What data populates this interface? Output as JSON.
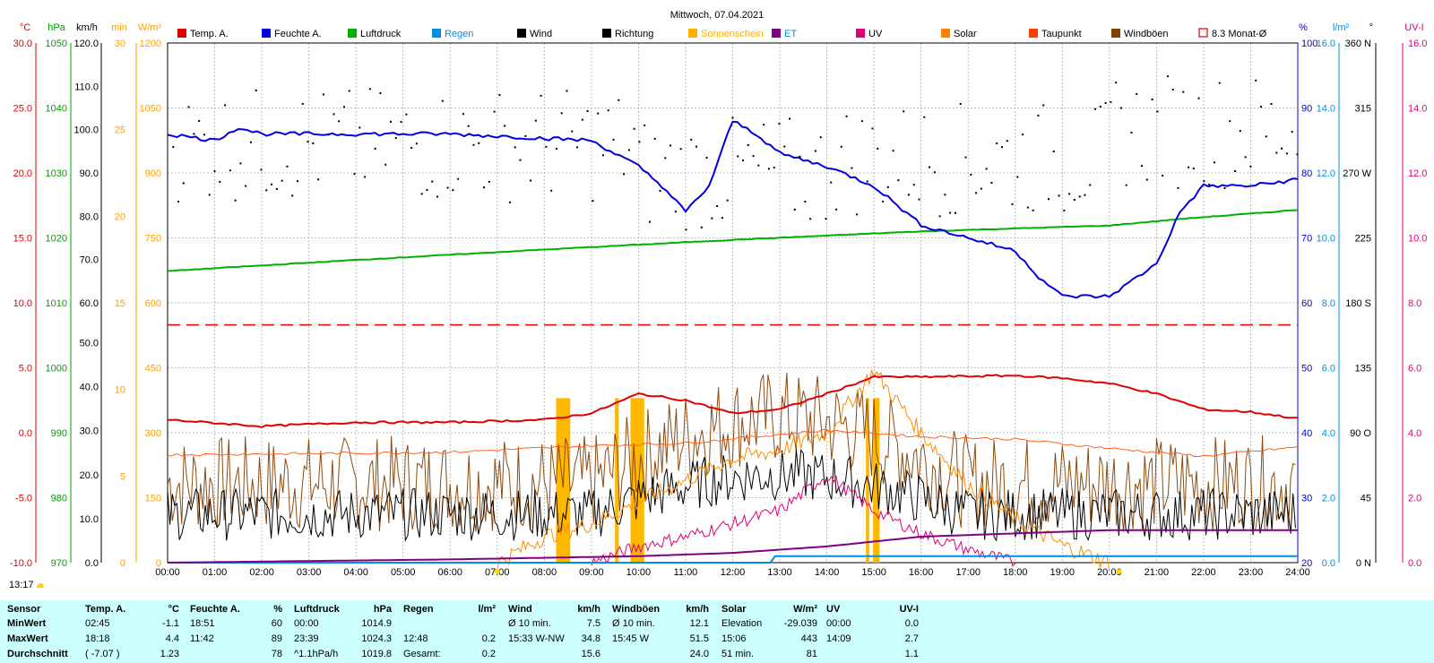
{
  "title": "Mittwoch, 07.04.2021",
  "sun_time": "13:17",
  "legend": [
    {
      "label": "Temp. A.",
      "color": "#e00000"
    },
    {
      "label": "Feuchte A.",
      "color": "#0000e0"
    },
    {
      "label": "Luftdruck",
      "color": "#00b000"
    },
    {
      "label": "Regen",
      "color": "#0090e0"
    },
    {
      "label": "Wind",
      "color": "#000000"
    },
    {
      "label": "Richtung",
      "color": "#000000"
    },
    {
      "label": "Sonnenschein",
      "color": "#ffb000"
    },
    {
      "label": "ET",
      "color": "#800080"
    },
    {
      "label": "UV",
      "color": "#e0007a"
    },
    {
      "label": "Solar",
      "color": "#ff8000"
    },
    {
      "label": "Taupunkt",
      "color": "#ff4000"
    },
    {
      "label": "Windböen",
      "color": "#804000"
    },
    {
      "label": "8.3 Monat-Ø",
      "color": "#e00000"
    }
  ],
  "axis_units": {
    "temp": "°C",
    "press": "hPa",
    "wind": "km/h",
    "sun": "min",
    "solar": "W/m²",
    "hum": "%",
    "rain": "l/m²",
    "dir": "°",
    "uv": "UV-I"
  },
  "axis_ticks": {
    "temp": [
      "30.0",
      "25.0",
      "20.0",
      "15.0",
      "10.0",
      "5.0",
      "0.0",
      "-5.0",
      "-10.0"
    ],
    "press": [
      "1050",
      "1040",
      "1030",
      "1020",
      "1010",
      "1000",
      "990",
      "980",
      "970"
    ],
    "wind": [
      "120.0",
      "110.0",
      "100.0",
      "90.0",
      "80.0",
      "70.0",
      "60.0",
      "50.0",
      "40.0",
      "30.0",
      "20.0",
      "10.0",
      "0.0"
    ],
    "sun": [
      "30",
      "25",
      "20",
      "15",
      "10",
      "5",
      "0"
    ],
    "solar": [
      "1200",
      "1050",
      "900",
      "750",
      "600",
      "450",
      "300",
      "150",
      "0"
    ],
    "hum": [
      "100",
      "90",
      "80",
      "70",
      "60",
      "50",
      "40",
      "30",
      "20"
    ],
    "rain": [
      "16.0",
      "14.0",
      "12.0",
      "10.0",
      "8.0",
      "6.0",
      "4.0",
      "2.0",
      "0.0"
    ],
    "dir": [
      "360 N",
      "315",
      "270 W",
      "225",
      "180 S",
      "135",
      "90 O",
      "45",
      "0 N"
    ],
    "uv": [
      "16.0",
      "14.0",
      "12.0",
      "10.0",
      "8.0",
      "6.0",
      "4.0",
      "2.0",
      "0.0"
    ],
    "time": [
      "00:00",
      "01:00",
      "02:00",
      "03:00",
      "04:00",
      "05:00",
      "06:00",
      "07:00",
      "08:00",
      "09:00",
      "10:00",
      "11:00",
      "12:00",
      "13:00",
      "14:00",
      "15:00",
      "16:00",
      "17:00",
      "18:00",
      "19:00",
      "20:00",
      "21:00",
      "22:00",
      "23:00",
      "24:00"
    ]
  },
  "chart_data": {
    "type": "line",
    "title": "Mittwoch, 07.04.2021",
    "x_range_hours": [
      0,
      24
    ],
    "monthly_avg_temp": 8.3,
    "series": [
      {
        "name": "Temp. A.",
        "unit": "°C",
        "points": [
          [
            0,
            1.0
          ],
          [
            2,
            0.5
          ],
          [
            4,
            0.8
          ],
          [
            6,
            0.8
          ],
          [
            8,
            1.0
          ],
          [
            9,
            1.5
          ],
          [
            10,
            3.0
          ],
          [
            11,
            2.5
          ],
          [
            12,
            1.5
          ],
          [
            13,
            1.8
          ],
          [
            14,
            3.0
          ],
          [
            15,
            4.3
          ],
          [
            16,
            4.3
          ],
          [
            18,
            4.4
          ],
          [
            19,
            4.2
          ],
          [
            20,
            3.8
          ],
          [
            21,
            3.0
          ],
          [
            22,
            1.8
          ],
          [
            23,
            1.6
          ],
          [
            24,
            1.1
          ]
        ]
      },
      {
        "name": "Feuchte A.",
        "unit": "%",
        "points": [
          [
            0,
            86
          ],
          [
            1,
            85
          ],
          [
            1.5,
            87
          ],
          [
            2,
            86
          ],
          [
            3,
            86
          ],
          [
            4,
            86
          ],
          [
            6,
            86
          ],
          [
            9,
            85
          ],
          [
            10,
            81
          ],
          [
            10.5,
            78
          ],
          [
            11,
            74
          ],
          [
            11.5,
            78
          ],
          [
            12,
            88
          ],
          [
            12.5,
            86
          ],
          [
            13,
            83
          ],
          [
            14,
            81
          ],
          [
            15,
            78
          ],
          [
            15.5,
            75
          ],
          [
            16,
            72
          ],
          [
            17,
            70
          ],
          [
            18,
            68
          ],
          [
            18.5,
            64
          ],
          [
            19,
            61
          ],
          [
            20,
            61
          ],
          [
            21,
            66
          ],
          [
            21.5,
            74
          ],
          [
            22,
            78
          ],
          [
            23,
            78
          ],
          [
            24,
            79
          ]
        ]
      },
      {
        "name": "Luftdruck",
        "unit": "hPa",
        "points": [
          [
            0,
            1014.9
          ],
          [
            4,
            1016.6
          ],
          [
            8,
            1018.2
          ],
          [
            12,
            1019.7
          ],
          [
            16,
            1021.0
          ],
          [
            20,
            1021.9
          ],
          [
            21.5,
            1022.9
          ],
          [
            24,
            1024.3
          ]
        ]
      },
      {
        "name": "Regen",
        "unit": "l/m²",
        "points": [
          [
            0,
            0
          ],
          [
            12.8,
            0
          ],
          [
            12.8,
            0.2
          ],
          [
            24,
            0.2
          ]
        ]
      },
      {
        "name": "ET",
        "unit": "l/m²",
        "points": [
          [
            0,
            0
          ],
          [
            6,
            0.1
          ],
          [
            10,
            0.2
          ],
          [
            12,
            0.3
          ],
          [
            14,
            0.5
          ],
          [
            16,
            0.8
          ],
          [
            18,
            0.9
          ],
          [
            20,
            1.0
          ],
          [
            22,
            1.0
          ],
          [
            24,
            1.0
          ]
        ]
      },
      {
        "name": "Sonnenschein",
        "unit": "min",
        "points": [
          [
            8.25,
            9.5
          ],
          [
            9.5,
            9.5
          ],
          [
            10.0,
            9.5
          ],
          [
            14.9,
            9.5
          ],
          [
            15.1,
            9.5
          ]
        ]
      },
      {
        "name": "Solar",
        "unit": "W/m²",
        "points": [
          [
            7,
            0
          ],
          [
            8,
            60
          ],
          [
            9,
            90
          ],
          [
            10,
            140
          ],
          [
            11,
            190
          ],
          [
            12,
            240
          ],
          [
            13,
            260
          ],
          [
            14,
            300
          ],
          [
            15,
            443
          ],
          [
            16,
            300
          ],
          [
            17,
            180
          ],
          [
            18,
            100
          ],
          [
            19,
            40
          ],
          [
            20,
            0
          ]
        ]
      },
      {
        "name": "UV",
        "unit": "UV-I",
        "points": [
          [
            9,
            0
          ],
          [
            10,
            0.5
          ],
          [
            11,
            0.8
          ],
          [
            12,
            1.2
          ],
          [
            13,
            1.6
          ],
          [
            14,
            2.7
          ],
          [
            15,
            1.6
          ],
          [
            16,
            0.9
          ],
          [
            17,
            0.4
          ],
          [
            18,
            0
          ]
        ]
      },
      {
        "name": "Taupunkt",
        "unit": "°C",
        "points": [
          [
            0,
            -1.7
          ],
          [
            6,
            -1.5
          ],
          [
            9,
            -1.0
          ],
          [
            11,
            -0.8
          ],
          [
            14,
            0.2
          ],
          [
            16,
            -0.3
          ],
          [
            18,
            -0.5
          ],
          [
            20,
            -1.2
          ],
          [
            22,
            -1.8
          ],
          [
            24,
            -1.1
          ]
        ]
      },
      {
        "name": "Wind",
        "unit": "km/h",
        "mean": 15.6,
        "max": 34.8
      },
      {
        "name": "Windböen",
        "unit": "km/h",
        "mean": 24.0,
        "max": 51.5
      },
      {
        "name": "Richtung",
        "unit": "°"
      }
    ]
  },
  "stats": {
    "row_labels": [
      "Sensor",
      "MinWert",
      "MaxWert",
      "Durchschnitt"
    ],
    "columns": [
      {
        "head": "Temp. A.",
        "unit": "°C",
        "rows": [
          [
            "02:45",
            "-1.1"
          ],
          [
            "18:18",
            "4.4"
          ],
          [
            "( -7.07 )",
            "1.23"
          ]
        ]
      },
      {
        "head": "Feuchte A.",
        "unit": "%",
        "rows": [
          [
            "18:51",
            "60"
          ],
          [
            "11:42",
            "89"
          ],
          [
            "",
            "78"
          ]
        ]
      },
      {
        "head": "Luftdruck",
        "unit": "hPa",
        "rows": [
          [
            "00:00",
            "1014.9"
          ],
          [
            "23:39",
            "1024.3"
          ],
          [
            "^1.1hPa/h",
            "1019.8"
          ]
        ]
      },
      {
        "head": "Regen",
        "unit": "l/m²",
        "rows": [
          [
            "",
            ""
          ],
          [
            "12:48",
            "0.2"
          ],
          [
            "Gesamt:",
            "0.2"
          ]
        ]
      },
      {
        "head": "Wind",
        "unit": "km/h",
        "rows": [
          [
            "Ø 10 min.",
            "7.5"
          ],
          [
            "15:33   W-NW",
            "34.8"
          ],
          [
            "",
            "15.6"
          ]
        ]
      },
      {
        "head": "Windböen",
        "unit": "km/h",
        "rows": [
          [
            "Ø 10 min.",
            "12.1"
          ],
          [
            "15:45   W",
            "51.5"
          ],
          [
            "",
            "24.0"
          ]
        ]
      },
      {
        "head": "Solar",
        "unit": "W/m²",
        "rows": [
          [
            "Elevation",
            "-29.039"
          ],
          [
            "15:06",
            "443"
          ],
          [
            "51 min.",
            "81"
          ]
        ]
      },
      {
        "head": "UV",
        "unit": "UV-I",
        "rows": [
          [
            "00:00",
            "0.0"
          ],
          [
            "14:09",
            "2.7"
          ],
          [
            "",
            "1.1"
          ]
        ]
      }
    ]
  }
}
